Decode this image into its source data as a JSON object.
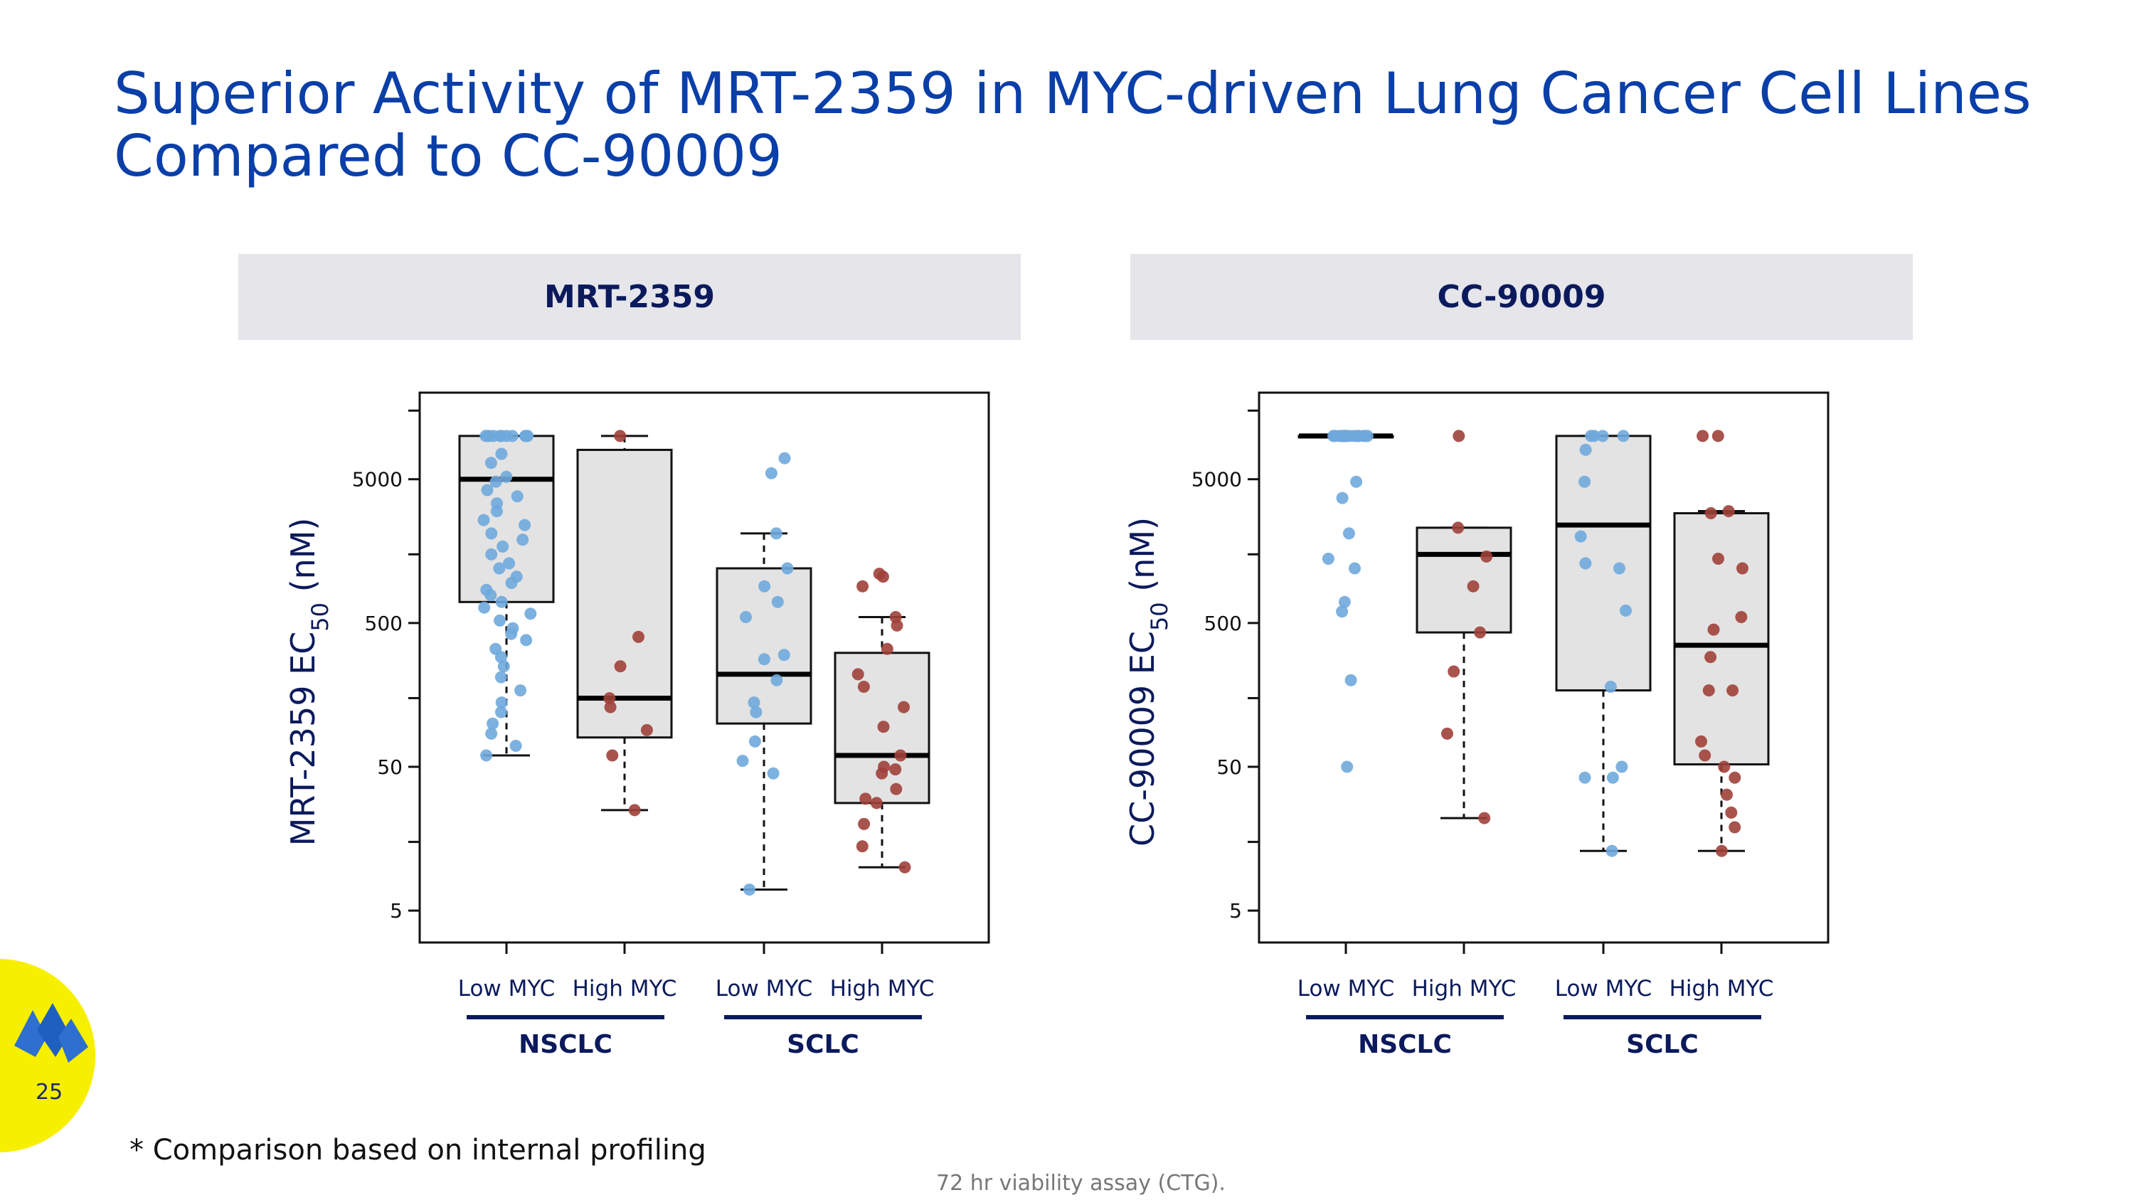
{
  "slide": {
    "title_line1": "Superior Activity of MRT-2359 in MYC-driven Lung Cancer Cell Lines",
    "title_line2": "Compared to CC-90009",
    "page_number": "25",
    "footnote": "* Comparison based on internal profiling",
    "source_note": "72 hr viability assay (CTG)."
  },
  "colors": {
    "title": "#0a3fa8",
    "header_bg": "#e5e5ea",
    "low_myc_points": "#6fa8dc",
    "high_myc_points": "#a0403a",
    "box_fill": "#e3e3e3",
    "logo_bg": "#f7ef00",
    "logo_mark": "#2e6fd0"
  },
  "icons": {
    "logo": "company-logo-icon"
  },
  "chart_data": [
    {
      "type": "boxplot",
      "panel_title": "MRT-2359",
      "ylabel_prefix": "MRT-2359 EC",
      "ylabel_sub": "50",
      "ylabel_suffix": " (nM)",
      "yscale": "log10",
      "ylim": [
        3,
        20000
      ],
      "yticks": [
        5,
        50,
        500,
        5000
      ],
      "ytick_labels": [
        "5",
        "50",
        "500",
        "5000"
      ],
      "categories": [
        "Low MYC",
        "High MYC",
        "Low MYC",
        "High MYC"
      ],
      "group_labels": [
        "NSCLC",
        "SCLC"
      ],
      "series": [
        {
          "name": "NSCLC Low MYC",
          "group": "low",
          "whisker_low": 60,
          "q1": 700,
          "median": 5000,
          "q3": 10000,
          "whisker_high": 10000,
          "points": [
            10000,
            10000,
            10000,
            10000,
            10000,
            10000,
            10000,
            10000,
            10000,
            10000,
            10000,
            10000,
            7500,
            6500,
            5200,
            4800,
            4200,
            3800,
            3400,
            3000,
            2600,
            2400,
            2100,
            1900,
            1700,
            1500,
            1300,
            1200,
            1050,
            950,
            850,
            780,
            700,
            640,
            580,
            520,
            460,
            420,
            380,
            330,
            290,
            250,
            210,
            170,
            140,
            120,
            100,
            85,
            70,
            60
          ]
        },
        {
          "name": "NSCLC High MYC",
          "group": "high",
          "whisker_low": 25,
          "q1": 80,
          "median": 150,
          "q3": 8000,
          "whisker_high": 10000,
          "points": [
            10000,
            400,
            250,
            150,
            130,
            90,
            60,
            25
          ]
        },
        {
          "name": "SCLC Low MYC",
          "group": "low",
          "whisker_low": 7,
          "q1": 100,
          "median": 220,
          "q3": 1200,
          "whisker_high": 2100,
          "points": [
            7000,
            5500,
            2100,
            1200,
            900,
            700,
            550,
            300,
            280,
            200,
            140,
            120,
            75,
            55,
            45,
            7
          ]
        },
        {
          "name": "SCLC High MYC",
          "group": "high",
          "whisker_low": 10,
          "q1": 28,
          "median": 60,
          "q3": 310,
          "whisker_high": 550,
          "points": [
            1100,
            1050,
            900,
            550,
            480,
            330,
            220,
            180,
            130,
            95,
            60,
            50,
            48,
            45,
            35,
            30,
            28,
            20,
            14,
            10
          ]
        }
      ]
    },
    {
      "type": "boxplot",
      "panel_title": "CC-90009",
      "ylabel_prefix": "CC-90009 EC",
      "ylabel_sub": "50",
      "ylabel_suffix": " (nM)",
      "yscale": "log10",
      "ylim": [
        3,
        20000
      ],
      "yticks": [
        5,
        50,
        500,
        5000
      ],
      "ytick_labels": [
        "5",
        "50",
        "500",
        "5000"
      ],
      "categories": [
        "Low MYC",
        "High MYC",
        "Low MYC",
        "High MYC"
      ],
      "group_labels": [
        "NSCLC",
        "SCLC"
      ],
      "series": [
        {
          "name": "NSCLC Low MYC",
          "group": "low",
          "whisker_low": 10000,
          "q1": 10000,
          "median": 10000,
          "q3": 10000,
          "whisker_high": 10000,
          "points": [
            10000,
            10000,
            10000,
            10000,
            10000,
            10000,
            10000,
            10000,
            10000,
            10000,
            10000,
            10000,
            10000,
            10000,
            10000,
            10000,
            10000,
            10000,
            4800,
            3700,
            2100,
            1400,
            1200,
            700,
            600,
            200,
            50
          ]
        },
        {
          "name": "NSCLC High MYC",
          "group": "high",
          "whisker_low": 22,
          "q1": 430,
          "median": 1500,
          "q3": 2300,
          "whisker_high": 2300,
          "points": [
            10000,
            2300,
            1450,
            900,
            430,
            230,
            85,
            22
          ]
        },
        {
          "name": "SCLC Low MYC",
          "group": "low",
          "whisker_low": 13,
          "q1": 170,
          "median": 2400,
          "q3": 10000,
          "whisker_high": 10000,
          "points": [
            10000,
            10000,
            10000,
            10000,
            8000,
            4800,
            2000,
            1300,
            1200,
            610,
            180,
            50,
            42,
            42,
            13
          ]
        },
        {
          "name": "SCLC High MYC",
          "group": "high",
          "whisker_low": 13,
          "q1": 52,
          "median": 350,
          "q3": 2900,
          "whisker_high": 3000,
          "points": [
            10000,
            10000,
            3000,
            2900,
            1400,
            1200,
            550,
            450,
            290,
            170,
            170,
            75,
            60,
            50,
            42,
            32,
            24,
            19,
            13
          ]
        }
      ]
    }
  ]
}
